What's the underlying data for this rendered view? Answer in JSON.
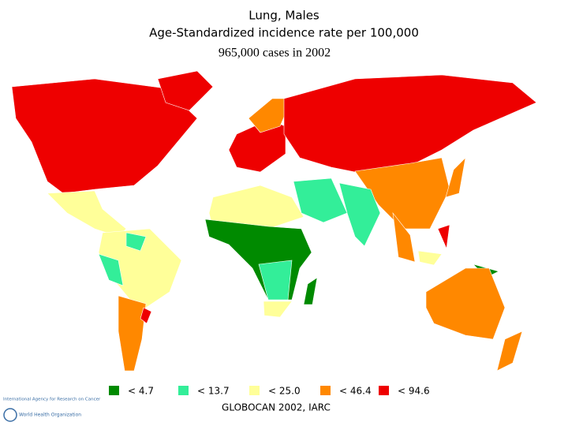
{
  "header": {
    "title": "Lung, Males",
    "subtitle": "Age-Standardized incidence rate per 100,000",
    "cases": "965,000 cases in 2002"
  },
  "legend": [
    {
      "label": "< 4.7",
      "color": "#008a00"
    },
    {
      "label": "< 13.7",
      "color": "#33ee99"
    },
    {
      "label": "< 25.0",
      "color": "#ffff99"
    },
    {
      "label": "< 46.4",
      "color": "#ff8800"
    },
    {
      "label": "< 94.6",
      "color": "#ee0000"
    }
  ],
  "source": "GLOBOCAN 2002, IARC",
  "logos": {
    "iarc": "International Agency for Research on Cancer",
    "who": "World Health Organization"
  }
}
